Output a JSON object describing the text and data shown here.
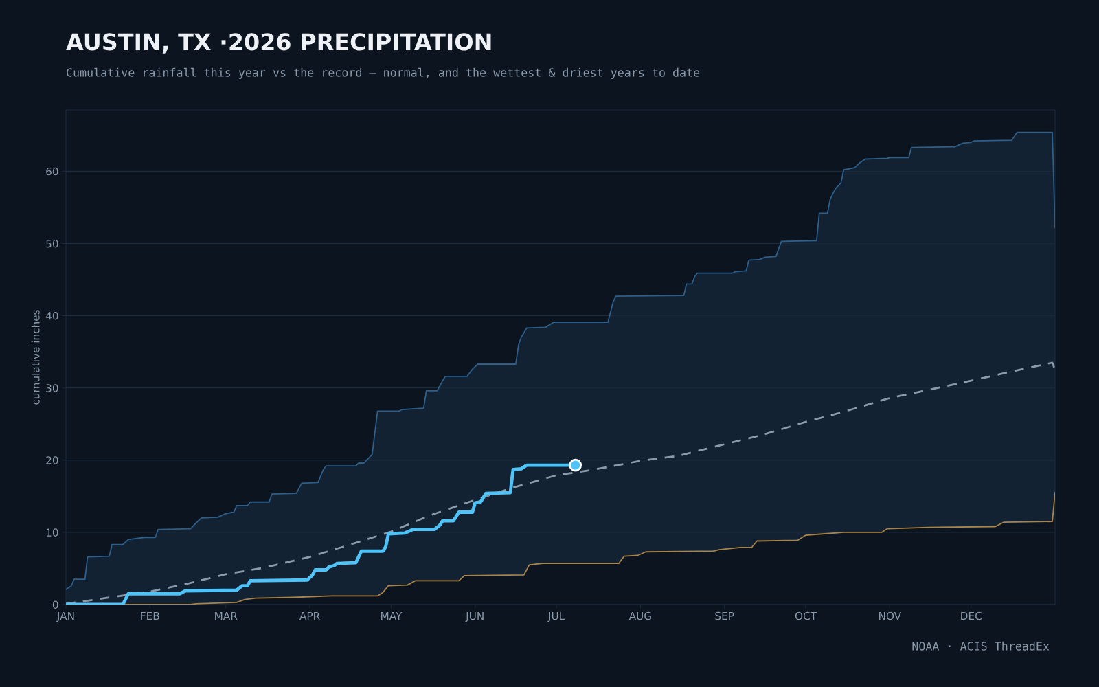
{
  "chart_data": {
    "type": "line",
    "title": "AUSTIN, TX ·2026 PRECIPITATION",
    "subtitle": "Cumulative rainfall this year vs the record — normal, and the wettest & driest years to date",
    "ylabel": "cumulative inches",
    "annotations": [
      "NOAA · ACIS ThreadEx"
    ],
    "xlim": [
      "2026-01-01",
      "2027-01-01"
    ],
    "ylim": [
      0,
      68.5
    ],
    "yticks": [
      0,
      10,
      20,
      30,
      40,
      50,
      60
    ],
    "xticks": [
      {
        "value": "2026-01-01",
        "label": "JAN"
      },
      {
        "value": "2026-02-01",
        "label": "FEB"
      },
      {
        "value": "2026-03-01",
        "label": "MAR"
      },
      {
        "value": "2026-04-01",
        "label": "APR"
      },
      {
        "value": "2026-05-01",
        "label": "MAY"
      },
      {
        "value": "2026-06-01",
        "label": "JUN"
      },
      {
        "value": "2026-07-01",
        "label": "JUL"
      },
      {
        "value": "2026-08-01",
        "label": "AUG"
      },
      {
        "value": "2026-09-01",
        "label": "SEP"
      },
      {
        "value": "2026-10-01",
        "label": "OCT"
      },
      {
        "value": "2026-11-01",
        "label": "NOV"
      },
      {
        "value": "2026-12-01",
        "label": "DEC"
      }
    ],
    "grid": "y",
    "series": [
      {
        "type": "area",
        "color": "#2d5f8a",
        "x": [
          "2026-01-01",
          "2026-01-03",
          "2026-01-04",
          "2026-01-08",
          "2026-01-09",
          "2026-01-17",
          "2026-01-18",
          "2026-01-22",
          "2026-01-24",
          "2026-01-30",
          "2026-02-03",
          "2026-02-04",
          "2026-02-16",
          "2026-02-18",
          "2026-02-20",
          "2026-02-26",
          "2026-03-01",
          "2026-03-04",
          "2026-03-05",
          "2026-03-09",
          "2026-03-10",
          "2026-03-17",
          "2026-03-18",
          "2026-03-27",
          "2026-03-29",
          "2026-04-04",
          "2026-04-06",
          "2026-04-07",
          "2026-04-18",
          "2026-04-19",
          "2026-04-21",
          "2026-04-23",
          "2026-04-24",
          "2026-04-26",
          "2026-05-04",
          "2026-05-05",
          "2026-05-13",
          "2026-05-14",
          "2026-05-18",
          "2026-05-20",
          "2026-05-21",
          "2026-05-29",
          "2026-05-31",
          "2026-06-02",
          "2026-06-16",
          "2026-06-17",
          "2026-06-18",
          "2026-06-20",
          "2026-06-27",
          "2026-06-30",
          "2026-07-20",
          "2026-07-22",
          "2026-07-23",
          "2026-08-17",
          "2026-08-18",
          "2026-08-20",
          "2026-08-21",
          "2026-08-22",
          "2026-09-04",
          "2026-09-05",
          "2026-09-09",
          "2026-09-10",
          "2026-09-14",
          "2026-09-16",
          "2026-09-20",
          "2026-09-22",
          "2026-10-05",
          "2026-10-06",
          "2026-10-09",
          "2026-10-10",
          "2026-10-11",
          "2026-10-12",
          "2026-10-14",
          "2026-10-15",
          "2026-10-19",
          "2026-10-21",
          "2026-10-23",
          "2026-10-31",
          "2026-11-01",
          "2026-11-08",
          "2026-11-09",
          "2026-11-25",
          "2026-11-28",
          "2026-12-01",
          "2026-12-02",
          "2026-12-16",
          "2026-12-18",
          "2026-12-31",
          "2027-01-01"
        ],
        "values": [
          2.1,
          2.6,
          3.5,
          3.5,
          6.6,
          6.7,
          8.3,
          8.3,
          9.0,
          9.3,
          9.3,
          10.4,
          10.5,
          11.3,
          12.0,
          12.1,
          12.6,
          12.8,
          13.7,
          13.7,
          14.2,
          14.2,
          15.3,
          15.4,
          16.8,
          16.9,
          18.7,
          19.2,
          19.2,
          19.6,
          19.6,
          20.4,
          20.8,
          26.8,
          26.8,
          27.0,
          27.2,
          29.6,
          29.6,
          31.0,
          31.6,
          31.6,
          32.6,
          33.3,
          33.3,
          35.9,
          37.0,
          38.3,
          38.4,
          39.1,
          39.1,
          42.0,
          42.7,
          42.8,
          44.4,
          44.4,
          45.4,
          45.9,
          45.9,
          46.1,
          46.2,
          47.7,
          47.8,
          48.1,
          48.2,
          50.3,
          50.4,
          54.2,
          54.2,
          56.1,
          56.9,
          57.6,
          58.4,
          60.2,
          60.5,
          61.2,
          61.7,
          61.8,
          61.9,
          61.9,
          63.3,
          63.4,
          63.9,
          64.0,
          64.2,
          64.3,
          65.4,
          65.4,
          52.2
        ]
      },
      {
        "type": "area",
        "color": "#a8844a",
        "x": [
          "2026-01-01",
          "2026-02-16",
          "2026-02-18",
          "2026-03-05",
          "2026-03-08",
          "2026-03-12",
          "2026-03-26",
          "2026-04-09",
          "2026-04-26",
          "2026-04-28",
          "2026-04-30",
          "2026-05-07",
          "2026-05-10",
          "2026-05-26",
          "2026-05-28",
          "2026-06-19",
          "2026-06-21",
          "2026-06-26",
          "2026-07-24",
          "2026-07-26",
          "2026-07-31",
          "2026-08-03",
          "2026-08-28",
          "2026-08-30",
          "2026-09-07",
          "2026-09-11",
          "2026-09-13",
          "2026-09-28",
          "2026-10-01",
          "2026-10-08",
          "2026-10-15",
          "2026-10-29",
          "2026-10-31",
          "2026-11-08",
          "2026-11-15",
          "2026-12-10",
          "2026-12-13",
          "2026-12-31",
          "2027-01-01"
        ],
        "values": [
          0,
          0,
          0.1,
          0.3,
          0.7,
          0.9,
          1.0,
          1.2,
          1.2,
          1.7,
          2.6,
          2.7,
          3.3,
          3.3,
          4.0,
          4.1,
          5.5,
          5.7,
          5.7,
          6.7,
          6.8,
          7.3,
          7.4,
          7.6,
          7.9,
          7.9,
          8.8,
          8.9,
          9.6,
          9.8,
          10.0,
          10.0,
          10.5,
          10.6,
          10.7,
          10.8,
          11.4,
          11.5,
          15.5
        ]
      },
      {
        "color": "#8a9aaa",
        "line_style": "dashed",
        "x": [
          "2026-01-01",
          "2026-02-01",
          "2026-02-15",
          "2026-03-01",
          "2026-03-15",
          "2026-04-01",
          "2026-04-15",
          "2026-05-01",
          "2026-05-15",
          "2026-06-01",
          "2026-06-15",
          "2026-07-01",
          "2026-07-15",
          "2026-08-01",
          "2026-08-15",
          "2026-09-01",
          "2026-09-15",
          "2026-10-01",
          "2026-10-15",
          "2026-11-01",
          "2026-11-15",
          "2026-12-01",
          "2026-12-15",
          "2026-12-31",
          "2027-01-01"
        ],
        "values": [
          0.1,
          1.8,
          2.9,
          4.2,
          5.1,
          6.6,
          8.2,
          10.1,
          12.3,
          14.5,
          16.2,
          17.9,
          18.7,
          19.9,
          20.6,
          22.2,
          23.5,
          25.3,
          26.7,
          28.6,
          29.7,
          31.0,
          32.2,
          33.5,
          32.5
        ]
      },
      {
        "type": "step",
        "color": "#4fc3f7",
        "x": [
          "2026-01-01",
          "2026-01-22",
          "2026-01-24",
          "2026-02-12",
          "2026-02-14",
          "2026-03-05",
          "2026-03-07",
          "2026-03-09",
          "2026-03-10",
          "2026-03-31",
          "2026-04-02",
          "2026-04-03",
          "2026-04-07",
          "2026-04-08",
          "2026-04-10",
          "2026-04-11",
          "2026-04-18",
          "2026-04-20",
          "2026-04-28",
          "2026-04-29",
          "2026-04-30",
          "2026-05-06",
          "2026-05-09",
          "2026-05-17",
          "2026-05-19",
          "2026-05-20",
          "2026-05-24",
          "2026-05-26",
          "2026-05-31",
          "2026-06-01",
          "2026-06-03",
          "2026-06-05",
          "2026-06-14",
          "2026-06-15",
          "2026-06-18",
          "2026-06-20",
          "2026-07-08"
        ],
        "values": [
          0,
          0,
          1.5,
          1.5,
          1.9,
          2.0,
          2.6,
          2.6,
          3.3,
          3.4,
          4.1,
          4.8,
          4.8,
          5.2,
          5.4,
          5.7,
          5.8,
          7.4,
          7.4,
          8.0,
          9.8,
          9.9,
          10.4,
          10.4,
          11.0,
          11.6,
          11.6,
          12.8,
          12.8,
          14.1,
          14.2,
          15.4,
          15.5,
          18.7,
          18.8,
          19.3,
          19.3
        ]
      },
      {
        "type": "scatter",
        "color": "#4fc3f7",
        "marker": "circle",
        "x": [
          "2026-07-08"
        ],
        "values": [
          19.3
        ]
      }
    ]
  }
}
